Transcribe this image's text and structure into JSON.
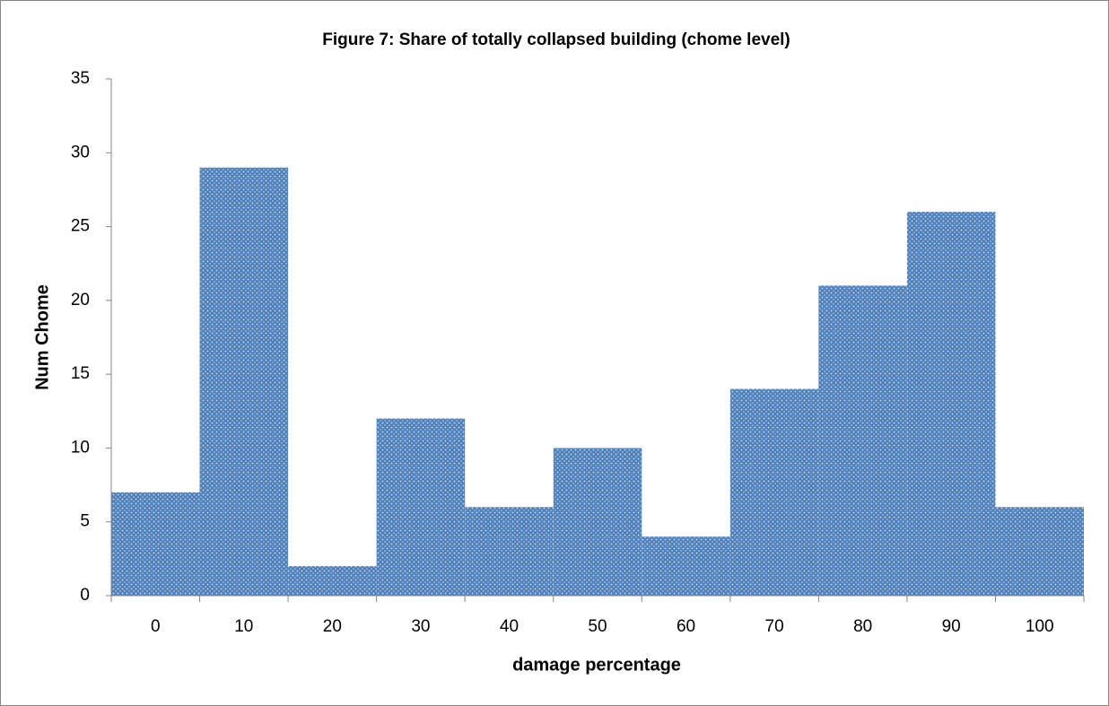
{
  "chart_data": {
    "type": "bar",
    "title": "Figure 7: Share of totally collapsed building (chome level)",
    "x_label": "damage percentage",
    "y_label": "Num Chome",
    "categories": [
      "0",
      "10",
      "20",
      "30",
      "40",
      "50",
      "60",
      "70",
      "80",
      "90",
      "100"
    ],
    "values": [
      7,
      29,
      2,
      12,
      6,
      10,
      4,
      14,
      21,
      26,
      6
    ],
    "color": "#4f81bd",
    "ylim": [
      0,
      35
    ],
    "yticks": [
      0,
      5,
      10,
      15,
      20,
      25,
      30,
      35
    ],
    "grid": false
  }
}
